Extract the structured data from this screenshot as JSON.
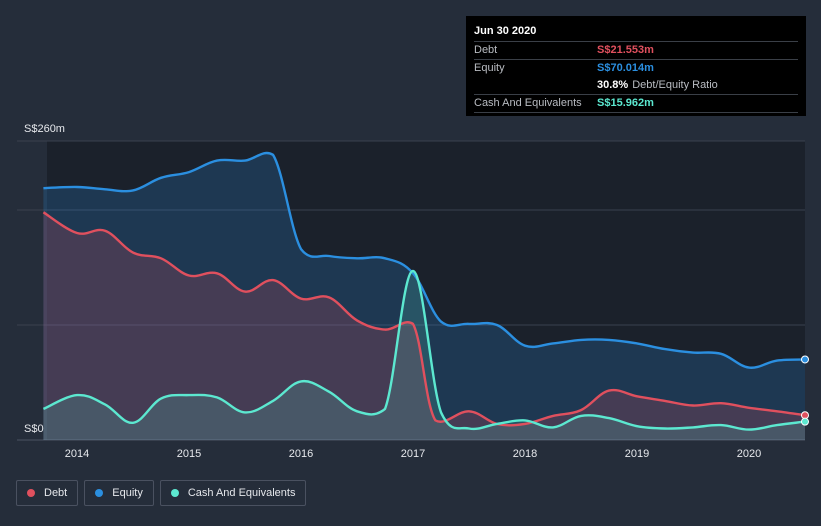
{
  "chart_data": {
    "type": "area",
    "title": "",
    "xlabel": "",
    "ylabel": "",
    "ylim": [
      0,
      260
    ],
    "xlim": [
      2013.7,
      2020.5
    ],
    "y_tick_labels": [
      {
        "value": 260,
        "label": "S$260m"
      },
      {
        "value": 0,
        "label": "S$0"
      }
    ],
    "x_ticks": [
      {
        "value": 2014,
        "label": "2014"
      },
      {
        "value": 2015,
        "label": "2015"
      },
      {
        "value": 2016,
        "label": "2016"
      },
      {
        "value": 2017,
        "label": "2017"
      },
      {
        "value": 2018,
        "label": "2018"
      },
      {
        "value": 2019,
        "label": "2019"
      },
      {
        "value": 2020,
        "label": "2020"
      }
    ],
    "grid_values": [
      260,
      200,
      100
    ],
    "series": [
      {
        "name": "Equity",
        "key": "equity",
        "color": "#2b8fe0",
        "points": [
          [
            2013.7,
            219
          ],
          [
            2014,
            220
          ],
          [
            2014.25,
            218
          ],
          [
            2014.5,
            217
          ],
          [
            2014.75,
            228
          ],
          [
            2015,
            233
          ],
          [
            2015.25,
            243
          ],
          [
            2015.5,
            243
          ],
          [
            2015.75,
            248
          ],
          [
            2016,
            166
          ],
          [
            2016.25,
            160
          ],
          [
            2016.5,
            158
          ],
          [
            2016.75,
            158
          ],
          [
            2017,
            145
          ],
          [
            2017.25,
            103
          ],
          [
            2017.5,
            101
          ],
          [
            2017.75,
            100
          ],
          [
            2018,
            82
          ],
          [
            2018.25,
            84
          ],
          [
            2018.5,
            87
          ],
          [
            2018.75,
            87
          ],
          [
            2019,
            84
          ],
          [
            2019.25,
            79
          ],
          [
            2019.5,
            76
          ],
          [
            2019.75,
            75
          ],
          [
            2020,
            63
          ],
          [
            2020.25,
            69
          ],
          [
            2020.5,
            70.014
          ]
        ]
      },
      {
        "name": "Debt",
        "key": "debt",
        "color": "#e0505e",
        "points": [
          [
            2013.7,
            198
          ],
          [
            2014,
            180
          ],
          [
            2014.25,
            182
          ],
          [
            2014.5,
            163
          ],
          [
            2014.75,
            158
          ],
          [
            2015,
            143
          ],
          [
            2015.25,
            145
          ],
          [
            2015.5,
            129
          ],
          [
            2015.75,
            139
          ],
          [
            2016,
            123
          ],
          [
            2016.25,
            124
          ],
          [
            2016.5,
            104
          ],
          [
            2016.75,
            96
          ],
          [
            2017,
            101
          ],
          [
            2017.2,
            17
          ],
          [
            2017.5,
            25
          ],
          [
            2017.75,
            14
          ],
          [
            2018,
            14
          ],
          [
            2018.25,
            21
          ],
          [
            2018.5,
            26
          ],
          [
            2018.75,
            43
          ],
          [
            2019,
            38
          ],
          [
            2019.25,
            34
          ],
          [
            2019.5,
            30
          ],
          [
            2019.75,
            32
          ],
          [
            2020,
            28
          ],
          [
            2020.25,
            25
          ],
          [
            2020.5,
            21.553
          ]
        ]
      },
      {
        "name": "Cash And Equivalents",
        "key": "cash",
        "color": "#5ce8d0",
        "points": [
          [
            2013.7,
            27
          ],
          [
            2014,
            39
          ],
          [
            2014.25,
            31
          ],
          [
            2014.5,
            15
          ],
          [
            2014.75,
            36
          ],
          [
            2015,
            39
          ],
          [
            2015.25,
            37
          ],
          [
            2015.5,
            24
          ],
          [
            2015.75,
            34
          ],
          [
            2016,
            51
          ],
          [
            2016.25,
            42
          ],
          [
            2016.5,
            25
          ],
          [
            2016.75,
            27
          ],
          [
            2017,
            147
          ],
          [
            2017.25,
            24
          ],
          [
            2017.5,
            10
          ],
          [
            2017.75,
            14
          ],
          [
            2018,
            17
          ],
          [
            2018.25,
            11
          ],
          [
            2018.5,
            21
          ],
          [
            2018.75,
            19
          ],
          [
            2019,
            12
          ],
          [
            2019.25,
            10
          ],
          [
            2019.5,
            11
          ],
          [
            2019.75,
            13
          ],
          [
            2020,
            9
          ],
          [
            2020.25,
            13
          ],
          [
            2020.5,
            15.962
          ]
        ]
      }
    ]
  },
  "tooltip": {
    "date": "Jun 30 2020",
    "rows": [
      {
        "label": "Debt",
        "value": "S$21.553m",
        "color": "#e0505e"
      },
      {
        "label": "Equity",
        "value": "S$70.014m",
        "color": "#2b8fe0"
      },
      {
        "label": "",
        "value": "30.8%",
        "extra": "Debt/Equity Ratio",
        "color": "#ffffff"
      },
      {
        "label": "Cash And Equivalents",
        "value": "S$15.962m",
        "color": "#5ce8d0"
      }
    ]
  },
  "legend": [
    {
      "label": "Debt",
      "color": "#e0505e"
    },
    {
      "label": "Equity",
      "color": "#2b8fe0"
    },
    {
      "label": "Cash And Equivalents",
      "color": "#5ce8d0"
    }
  ]
}
